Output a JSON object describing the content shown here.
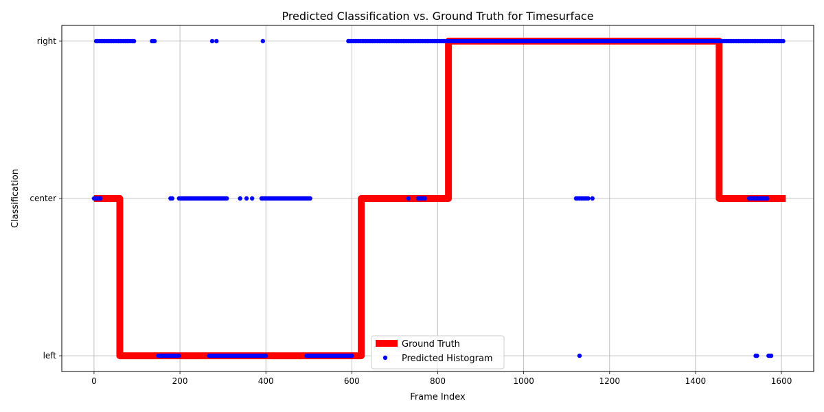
{
  "chart_data": {
    "type": "line",
    "title": "Predicted Classification vs. Ground Truth for Timesurface",
    "xlabel": "Frame Index",
    "ylabel": "Classification",
    "xlim": [
      -75,
      1675
    ],
    "ylim": [
      -0.1,
      2.1
    ],
    "x_ticks": [
      0,
      200,
      400,
      600,
      800,
      1000,
      1200,
      1400,
      1600
    ],
    "categories": [
      "left",
      "center",
      "right"
    ],
    "grid": true,
    "legend_position": "lower center",
    "colors": {
      "ground_truth": "#ff0000",
      "predicted": "#0000ff",
      "grid": "#b0b0b0"
    },
    "series": [
      {
        "name": "Ground Truth",
        "style": "step-line",
        "x": [
          0,
          60,
          60,
          622,
          622,
          825,
          825,
          1455,
          1455,
          1610
        ],
        "y": [
          1,
          1,
          0,
          0,
          1,
          1,
          2,
          2,
          1,
          1
        ]
      },
      {
        "name": "Predicted Histogram",
        "style": "markers",
        "runs": [
          {
            "x_start": 0,
            "x_end": 15,
            "step": 3,
            "y": 1
          },
          {
            "x_start": 5,
            "x_end": 95,
            "step": 4,
            "y": 2
          },
          {
            "x_start": 135,
            "x_end": 142,
            "step": 3,
            "y": 2
          },
          {
            "x_start": 150,
            "x_end": 200,
            "step": 3,
            "y": 0
          },
          {
            "x_start": 178,
            "x_end": 183,
            "step": 4,
            "y": 1
          },
          {
            "x_start": 198,
            "x_end": 310,
            "step": 3,
            "y": 1
          },
          {
            "x_start": 268,
            "x_end": 400,
            "step": 3,
            "y": 0
          },
          {
            "x_start": 392,
            "x_end": 505,
            "step": 3,
            "y": 1
          },
          {
            "x_start": 495,
            "x_end": 600,
            "step": 3,
            "y": 0
          },
          {
            "x_start": 592,
            "x_end": 1605,
            "step": 4,
            "y": 2
          },
          {
            "x_start": 755,
            "x_end": 770,
            "step": 3,
            "y": 1
          },
          {
            "x_start": 1122,
            "x_end": 1150,
            "step": 4,
            "y": 1
          },
          {
            "x_start": 1525,
            "x_end": 1568,
            "step": 3,
            "y": 1
          },
          {
            "x_start": 1540,
            "x_end": 1545,
            "step": 3,
            "y": 0
          },
          {
            "x_start": 1570,
            "x_end": 1578,
            "step": 3,
            "y": 0
          }
        ],
        "points": [
          [
            275,
            2
          ],
          [
            285,
            2
          ],
          [
            393,
            2
          ],
          [
            340,
            1
          ],
          [
            355,
            1
          ],
          [
            368,
            1
          ],
          [
            390,
            1
          ],
          [
            732,
            1
          ],
          [
            1160,
            1
          ],
          [
            1130,
            0
          ]
        ]
      }
    ]
  }
}
